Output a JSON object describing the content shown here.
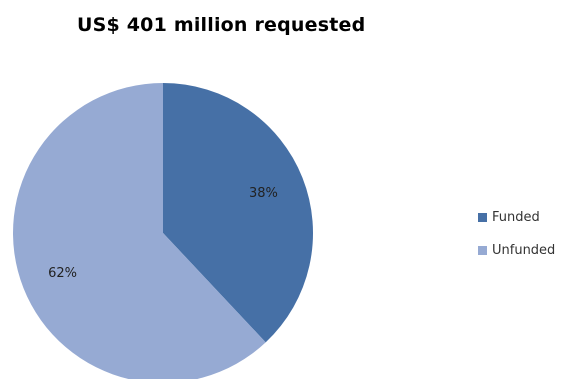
{
  "chart_data": {
    "type": "pie",
    "title": "US$ 401 million requested",
    "slices": [
      {
        "name": "Funded",
        "value": 38,
        "label": "38%",
        "color": "#4670a6"
      },
      {
        "name": "Unfunded",
        "value": 62,
        "label": "62%",
        "color": "#96aad3"
      }
    ],
    "legend": {
      "placement": "right",
      "entries": [
        "Funded",
        "Unfunded"
      ]
    }
  }
}
